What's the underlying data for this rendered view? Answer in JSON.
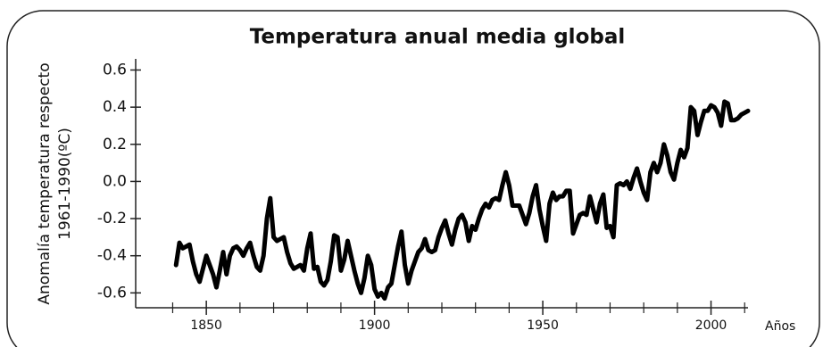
{
  "chart_data": {
    "type": "line",
    "title": "Temperatura anual media global",
    "y_label": [
      "Anomalía temperatura respecto",
      "1961-1990(ºC)"
    ],
    "x_label": "Años",
    "color": "#000000",
    "x": [
      1841,
      1842,
      1843,
      1844,
      1845,
      1846,
      1847,
      1848,
      1849,
      1850,
      1851,
      1852,
      1853,
      1854,
      1855,
      1856,
      1857,
      1858,
      1859,
      1860,
      1861,
      1862,
      1863,
      1864,
      1865,
      1866,
      1867,
      1868,
      1869,
      1870,
      1871,
      1872,
      1873,
      1874,
      1875,
      1876,
      1877,
      1878,
      1879,
      1880,
      1881,
      1882,
      1883,
      1884,
      1885,
      1886,
      1887,
      1888,
      1889,
      1890,
      1891,
      1892,
      1893,
      1894,
      1895,
      1896,
      1897,
      1898,
      1899,
      1900,
      1901,
      1902,
      1903,
      1904,
      1905,
      1906,
      1907,
      1908,
      1909,
      1910,
      1911,
      1912,
      1913,
      1914,
      1915,
      1916,
      1917,
      1918,
      1919,
      1920,
      1921,
      1922,
      1923,
      1924,
      1925,
      1926,
      1927,
      1928,
      1929,
      1930,
      1931,
      1932,
      1933,
      1934,
      1935,
      1936,
      1937,
      1938,
      1939,
      1940,
      1941,
      1942,
      1943,
      1944,
      1945,
      1946,
      1947,
      1948,
      1949,
      1950,
      1951,
      1952,
      1953,
      1954,
      1955,
      1956,
      1957,
      1958,
      1959,
      1960,
      1961,
      1962,
      1963,
      1964,
      1965,
      1966,
      1967,
      1968,
      1969,
      1970,
      1971,
      1972,
      1973,
      1974,
      1975,
      1976,
      1977,
      1978,
      1979,
      1980,
      1981,
      1982,
      1983,
      1984,
      1985,
      1986,
      1987,
      1988,
      1989,
      1990,
      1991,
      1992,
      1993,
      1994,
      1995,
      1996,
      1997,
      1998,
      1999,
      2000,
      2001,
      2002,
      2003,
      2004,
      2005,
      2006,
      2007,
      2008,
      2009,
      2010,
      2011
    ],
    "values": [
      -0.45,
      -0.33,
      -0.36,
      -0.35,
      -0.34,
      -0.43,
      -0.5,
      -0.54,
      -0.47,
      -0.4,
      -0.45,
      -0.5,
      -0.57,
      -0.48,
      -0.38,
      -0.5,
      -0.4,
      -0.36,
      -0.35,
      -0.37,
      -0.4,
      -0.36,
      -0.33,
      -0.4,
      -0.46,
      -0.48,
      -0.4,
      -0.2,
      -0.09,
      -0.3,
      -0.32,
      -0.31,
      -0.3,
      -0.38,
      -0.44,
      -0.47,
      -0.46,
      -0.45,
      -0.48,
      -0.36,
      -0.28,
      -0.47,
      -0.46,
      -0.54,
      -0.56,
      -0.53,
      -0.43,
      -0.29,
      -0.3,
      -0.48,
      -0.42,
      -0.32,
      -0.4,
      -0.48,
      -0.55,
      -0.6,
      -0.52,
      -0.4,
      -0.45,
      -0.58,
      -0.62,
      -0.6,
      -0.63,
      -0.57,
      -0.55,
      -0.45,
      -0.35,
      -0.27,
      -0.45,
      -0.55,
      -0.48,
      -0.43,
      -0.38,
      -0.36,
      -0.31,
      -0.37,
      -0.38,
      -0.37,
      -0.3,
      -0.25,
      -0.21,
      -0.28,
      -0.34,
      -0.26,
      -0.2,
      -0.18,
      -0.22,
      -0.32,
      -0.24,
      -0.26,
      -0.2,
      -0.15,
      -0.12,
      -0.14,
      -0.1,
      -0.09,
      -0.1,
      -0.02,
      0.05,
      -0.02,
      -0.13,
      -0.13,
      -0.13,
      -0.18,
      -0.23,
      -0.17,
      -0.08,
      -0.02,
      -0.15,
      -0.24,
      -0.32,
      -0.12,
      -0.06,
      -0.1,
      -0.08,
      -0.08,
      -0.05,
      -0.05,
      -0.28,
      -0.23,
      -0.18,
      -0.17,
      -0.18,
      -0.08,
      -0.15,
      -0.22,
      -0.12,
      -0.07,
      -0.25,
      -0.24,
      -0.3,
      -0.02,
      -0.01,
      -0.02,
      0.0,
      -0.04,
      0.02,
      0.07,
      0.0,
      -0.06,
      -0.1,
      0.05,
      0.1,
      0.05,
      0.1,
      0.2,
      0.14,
      0.05,
      0.01,
      0.1,
      0.17,
      0.13,
      0.18,
      0.4,
      0.38,
      0.25,
      0.32,
      0.38,
      0.38,
      0.41,
      0.4,
      0.37,
      0.3,
      0.43,
      0.42,
      0.33,
      0.33,
      0.34,
      0.36,
      0.37,
      0.38
    ],
    "xlim": [
      1829,
      2011
    ],
    "xticks": [
      1850,
      1900,
      1950,
      2000
    ],
    "xminorticks": [
      1840,
      1860,
      1870,
      1880,
      1890,
      1910,
      1920,
      1930,
      1940,
      1960,
      1970,
      1980,
      1990,
      2010
    ],
    "ylim": [
      -0.68,
      0.66
    ],
    "yticks": [
      0.6,
      0.4,
      0.2,
      {
        "value": 0,
        "label": "0.0"
      },
      -0.2,
      -0.4,
      -0.6
    ]
  }
}
